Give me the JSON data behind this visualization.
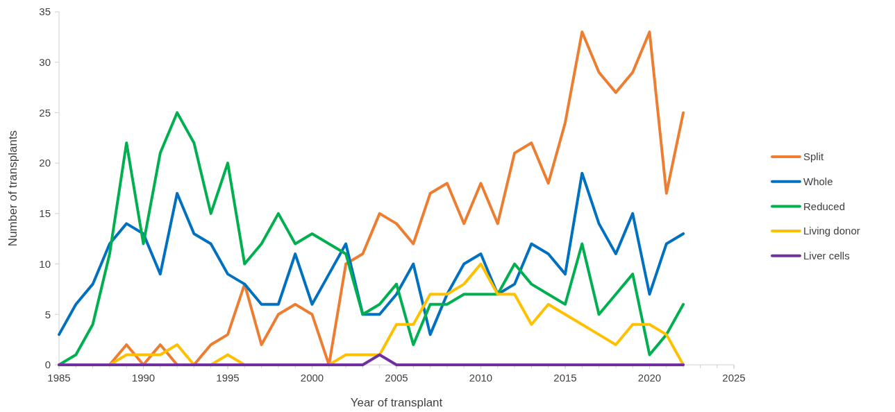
{
  "chart_data": {
    "type": "line",
    "xlabel": "Year of transplant",
    "ylabel": "Number of transplants",
    "x": [
      1985,
      1986,
      1987,
      1988,
      1989,
      1990,
      1991,
      1992,
      1993,
      1994,
      1995,
      1996,
      1997,
      1998,
      1999,
      2000,
      2001,
      2002,
      2003,
      2004,
      2005,
      2006,
      2007,
      2008,
      2009,
      2010,
      2011,
      2012,
      2013,
      2014,
      2015,
      2016,
      2017,
      2018,
      2019,
      2020,
      2021,
      2022
    ],
    "series": [
      {
        "name": "Split",
        "color": "#ed7d31",
        "values": [
          null,
          null,
          0,
          0,
          2,
          0,
          2,
          0,
          0,
          2,
          3,
          8,
          2,
          5,
          6,
          5,
          0,
          10,
          11,
          15,
          14,
          12,
          17,
          18,
          14,
          18,
          14,
          21,
          22,
          18,
          24,
          33,
          29,
          27,
          29,
          33,
          17,
          25
        ]
      },
      {
        "name": "Whole",
        "color": "#0070c0",
        "values": [
          3,
          6,
          8,
          12,
          14,
          13,
          9,
          17,
          13,
          12,
          9,
          8,
          6,
          6,
          11,
          6,
          9,
          12,
          5,
          5,
          7,
          10,
          3,
          7,
          10,
          11,
          7,
          8,
          12,
          11,
          9,
          19,
          14,
          11,
          15,
          7,
          12,
          13
        ]
      },
      {
        "name": "Reduced",
        "color": "#00b050",
        "values": [
          0,
          1,
          4,
          11,
          22,
          12,
          21,
          25,
          22,
          15,
          20,
          10,
          12,
          15,
          12,
          13,
          12,
          11,
          5,
          6,
          8,
          2,
          6,
          6,
          7,
          7,
          7,
          10,
          8,
          7,
          6,
          12,
          5,
          7,
          9,
          1,
          3,
          6
        ]
      },
      {
        "name": "Living donor",
        "color": "#ffc000",
        "values": [
          null,
          null,
          0,
          0,
          1,
          1,
          1,
          2,
          0,
          0,
          1,
          0,
          0,
          0,
          0,
          0,
          0,
          1,
          1,
          1,
          4,
          4,
          7,
          7,
          8,
          10,
          7,
          7,
          4,
          6,
          5,
          4,
          3,
          2,
          4,
          4,
          3,
          0
        ]
      },
      {
        "name": "Liver cells",
        "color": "#7030a0",
        "values": [
          0,
          0,
          0,
          0,
          0,
          0,
          0,
          0,
          0,
          0,
          0,
          0,
          0,
          0,
          0,
          0,
          0,
          0,
          0,
          1,
          0,
          0,
          0,
          0,
          0,
          0,
          0,
          0,
          0,
          0,
          0,
          0,
          0,
          0,
          0,
          0,
          0,
          0
        ]
      }
    ],
    "xlim": [
      1985,
      2025
    ],
    "xticks": [
      1985,
      1990,
      1995,
      2000,
      2005,
      2010,
      2015,
      2020,
      2025
    ],
    "ylim": [
      0,
      35
    ],
    "yticks": [
      0,
      5,
      10,
      15,
      20,
      25,
      30,
      35
    ],
    "grid": false,
    "legend": "right",
    "marker": "none",
    "line_style": "solid"
  }
}
